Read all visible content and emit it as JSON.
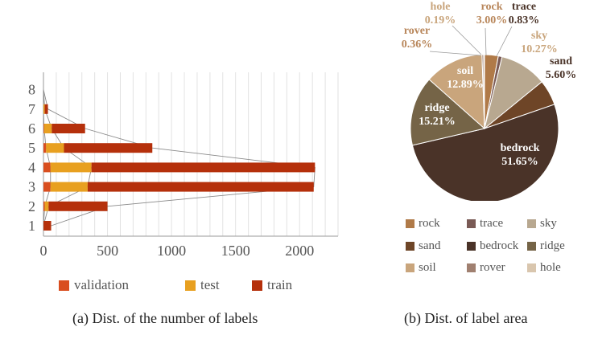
{
  "chart_data": [
    {
      "type": "bar",
      "stacked": true,
      "orientation": "horizontal",
      "categories": [
        "1",
        "2",
        "3",
        "4",
        "5",
        "6",
        "7",
        "8"
      ],
      "series": [
        {
          "name": "validation",
          "color": "#d94e1f",
          "values": [
            0,
            10,
            55,
            55,
            20,
            5,
            0,
            0
          ]
        },
        {
          "name": "test",
          "color": "#e8a020",
          "values": [
            0,
            30,
            290,
            320,
            140,
            60,
            10,
            0
          ]
        },
        {
          "name": "train",
          "color": "#b5300b",
          "values": [
            60,
            460,
            1765,
            1745,
            690,
            260,
            25,
            0
          ]
        }
      ],
      "xticks": [
        "0",
        "500",
        "1000",
        "1500",
        "2000"
      ],
      "xlim": [
        0,
        2300
      ],
      "caption": "(a) Dist. of the number of labels"
    },
    {
      "type": "pie",
      "slices": [
        {
          "name": "rock",
          "value": 3.0,
          "label": "3.00%",
          "color": "#b07a48"
        },
        {
          "name": "trace",
          "value": 0.83,
          "label": "0.83%",
          "color": "#7a5a55"
        },
        {
          "name": "sky",
          "value": 10.27,
          "label": "10.27%",
          "color": "#b8a890"
        },
        {
          "name": "sand",
          "value": 5.6,
          "label": "5.60%",
          "color": "#6e4527"
        },
        {
          "name": "bedrock",
          "value": 51.65,
          "label": "51.65%",
          "color": "#4a3328"
        },
        {
          "name": "ridge",
          "value": 15.21,
          "label": "15.21%",
          "color": "#756447"
        },
        {
          "name": "soil",
          "value": 12.89,
          "label": "12.89%",
          "color": "#c9a57c"
        },
        {
          "name": "rover",
          "value": 0.36,
          "label": "0.36%",
          "color": "#a08070"
        },
        {
          "name": "hole",
          "value": 0.19,
          "label": "0.19%",
          "color": "#d9c6ae"
        }
      ],
      "legend": [
        "rock",
        "trace",
        "sky",
        "sand",
        "bedrock",
        "ridge",
        "soil",
        "rover",
        "hole"
      ],
      "caption": "(b) Dist. of label area"
    }
  ]
}
